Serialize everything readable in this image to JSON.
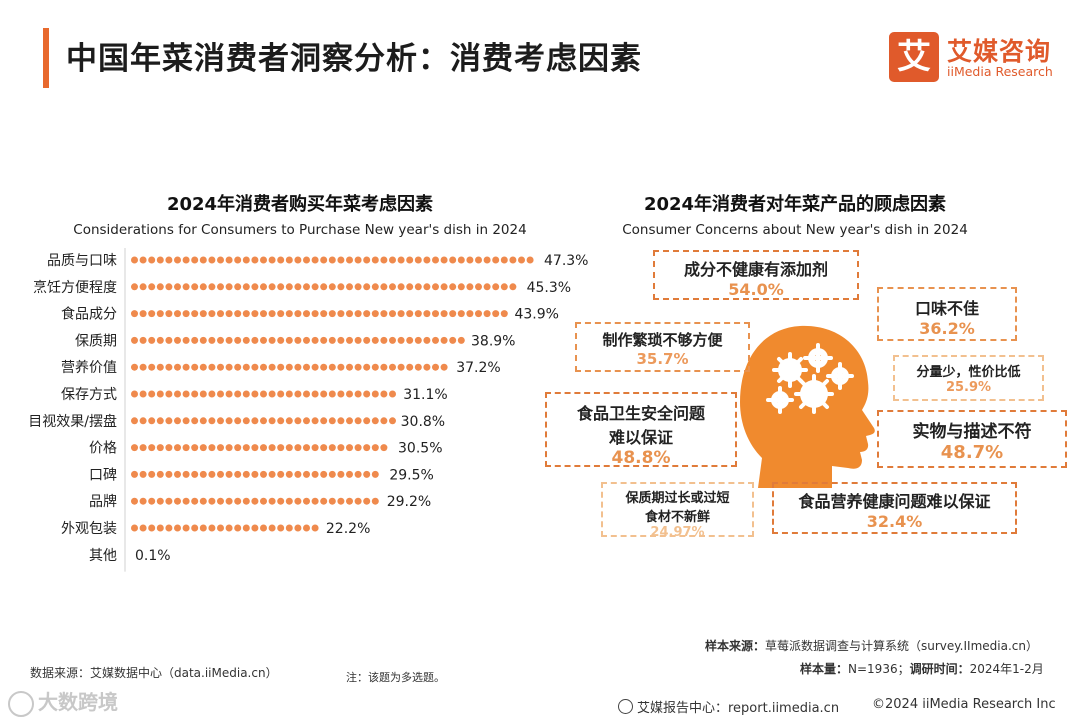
{
  "page": {
    "title": "中国年菜消费者洞察分析：消费考虑因素"
  },
  "logo": {
    "mark": "艾",
    "cn": "艾媒咨询",
    "en": "iiMedia Research"
  },
  "colors": {
    "accent": "#e8692d",
    "bar": "#ef8a4d",
    "box_dark": "#e07b3a",
    "box_mid": "#e8924f",
    "box_light": "#f2c08f",
    "head": "#f08a2e"
  },
  "left_chart": {
    "title": "2024年消费者购买年菜考虑因素",
    "subtitle": "Considerations for Consumers to Purchase New year's dish in 2024"
  },
  "chart_data": [
    {
      "type": "bar",
      "orientation": "horizontal",
      "title": "2024年消费者购买年菜考虑因素",
      "subtitle": "Considerations for Consumers to Purchase New year's dish in 2024",
      "categories": [
        "品质与口味",
        "烹饪方便程度",
        "食品成分",
        "保质期",
        "营养价值",
        "保存方式",
        "目视效果/摆盘",
        "价格",
        "口碑",
        "品牌",
        "外观包装",
        "其他"
      ],
      "values": [
        47.3,
        45.3,
        43.9,
        38.9,
        37.2,
        31.1,
        30.8,
        30.5,
        29.5,
        29.2,
        22.2,
        0.1
      ],
      "value_labels": [
        "47.3%",
        "45.3%",
        "43.9%",
        "38.9%",
        "37.2%",
        "31.1%",
        "30.8%",
        "30.5%",
        "29.5%",
        "29.2%",
        "22.2%",
        "0.1%"
      ],
      "unit": "%",
      "xlim": [
        0,
        50
      ]
    },
    {
      "type": "table",
      "title": "2024年消费者对年菜产品的顾虑因素",
      "subtitle": "Consumer Concerns about New year's dish in 2024",
      "categories": [
        "成分不健康有添加剂",
        "实物与描述不符",
        "食品卫生安全问题难以保证",
        "口味不佳",
        "制作繁琐不够方便",
        "食品营养健康问题难以保证",
        "分量少，性价比低",
        "保质期过长或过短食材不新鲜"
      ],
      "values": [
        54.0,
        48.7,
        48.8,
        36.2,
        35.7,
        32.4,
        25.9,
        24.97
      ],
      "unit": "%"
    }
  ],
  "right_chart": {
    "title": "2024年消费者对年菜产品的顾虑因素",
    "subtitle": "Consumer Concerns about New year's dish in 2024",
    "boxes": [
      {
        "name": "concern-additives",
        "label": "成分不健康有添加剂",
        "value": "54.0%"
      },
      {
        "name": "concern-taste",
        "label": "口味不佳",
        "value": "36.2%"
      },
      {
        "name": "concern-cumbersome",
        "label": "制作繁琐不够方便",
        "value": "35.7%"
      },
      {
        "name": "concern-portion",
        "label": "分量少，性价比低",
        "value": "25.9%"
      },
      {
        "name": "concern-hygiene",
        "label1": "食品卫生安全问题",
        "label2": "难以保证",
        "value": "48.8%"
      },
      {
        "name": "concern-mismatch",
        "label": "实物与描述不符",
        "value": "48.7%"
      },
      {
        "name": "concern-shelf-life",
        "label1": "保质期过长或过短",
        "label2": "食材不新鲜",
        "value": "24.97%"
      },
      {
        "name": "concern-nutrition",
        "label": "食品营养健康问题难以保证",
        "value": "32.4%"
      }
    ]
  },
  "footer": {
    "sample_source_label": "样本来源：",
    "sample_source": "草莓派数据调查与计算系统（survey.IImedia.cn）",
    "sample_size_label": "样本量：",
    "sample_size": "N=1936；",
    "survey_time_label": "调研时间：",
    "survey_time": "2024年1-2月",
    "data_source": "数据来源：艾媒数据中心（data.iiMedia.cn）",
    "note": "注：该题为多选题。",
    "report_center": "艾媒报告中心：report.iimedia.cn",
    "copyright": "©2024  iiMedia Research  Inc",
    "watermark": "大数跨境"
  }
}
